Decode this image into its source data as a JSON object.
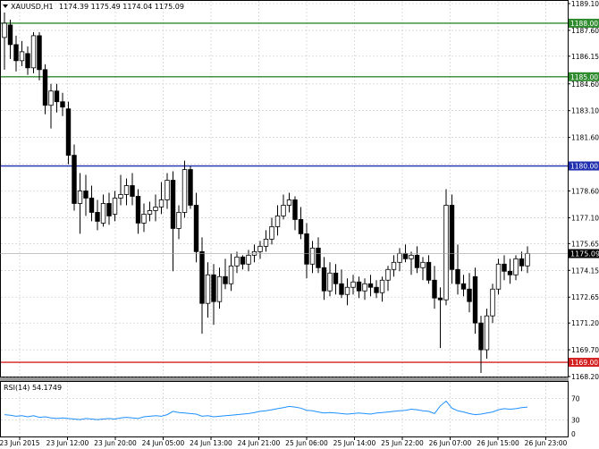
{
  "main_chart": {
    "symbol_label": "XAUUSD,H1",
    "ohlc_label": "1174.39 1175.49 1174.04 1175.09",
    "current_price_label": "1175.09",
    "current_price": 1175.09
  },
  "levels": [
    {
      "price": 1188.0,
      "label": "1188.00",
      "color": "#2e8b2e"
    },
    {
      "price": 1185.0,
      "label": "1185.00",
      "color": "#2e8b2e"
    },
    {
      "price": 1180.0,
      "label": "1180.00",
      "color": "#1f2fb0"
    },
    {
      "price": 1169.0,
      "label": "1169.00",
      "color": "#d42020"
    }
  ],
  "rsi": {
    "label": "RSI(14) 54.1749",
    "period": 14,
    "value": 54.1749,
    "axis_labels": [
      "70",
      "30",
      "0"
    ],
    "line_color": "#1e90ff"
  },
  "colors": {
    "grid": "#c8c8c8",
    "candle": "#000000",
    "axis": "#000000",
    "rsi_line": "#1e90ff"
  },
  "chart_data": [
    {
      "type": "candlestick",
      "title": "XAUUSD,H1",
      "ylim": [
        1168.2,
        1189.1
      ],
      "y_ticks": [
        "1189.10",
        "1187.60",
        "1186.15",
        "1184.60",
        "1183.10",
        "1181.60",
        "1180.10",
        "1178.60",
        "1177.10",
        "1175.65",
        "1174.15",
        "1172.65",
        "1171.20",
        "1169.70",
        "1168.20"
      ],
      "x_tick_labels": [
        "23 Jun 2015",
        "23 Jun 12:00",
        "23 Jun 20:00",
        "24 Jun 05:00",
        "24 Jun 13:00",
        "24 Jun 21:00",
        "25 Jun 06:00",
        "25 Jun 14:00",
        "25 Jun 22:00",
        "26 Jun 07:00",
        "26 Jun 15:00",
        "26 Jun 23:00"
      ],
      "candles": [
        {
          "o": 1187.2,
          "h": 1188.6,
          "l": 1185.4,
          "c": 1188.0
        },
        {
          "o": 1187.9,
          "h": 1188.2,
          "l": 1186.0,
          "c": 1186.8
        },
        {
          "o": 1186.8,
          "h": 1187.3,
          "l": 1185.3,
          "c": 1185.9
        },
        {
          "o": 1185.9,
          "h": 1187.0,
          "l": 1185.6,
          "c": 1186.4
        },
        {
          "o": 1186.3,
          "h": 1186.7,
          "l": 1185.1,
          "c": 1185.5
        },
        {
          "o": 1185.5,
          "h": 1187.5,
          "l": 1185.2,
          "c": 1187.3
        },
        {
          "o": 1187.3,
          "h": 1187.5,
          "l": 1184.8,
          "c": 1185.4
        },
        {
          "o": 1185.4,
          "h": 1185.7,
          "l": 1182.9,
          "c": 1183.4
        },
        {
          "o": 1183.4,
          "h": 1184.6,
          "l": 1182.1,
          "c": 1184.2
        },
        {
          "o": 1184.2,
          "h": 1184.6,
          "l": 1183.0,
          "c": 1183.6
        },
        {
          "o": 1183.6,
          "h": 1184.1,
          "l": 1182.8,
          "c": 1183.3
        },
        {
          "o": 1183.2,
          "h": 1183.6,
          "l": 1180.1,
          "c": 1180.6
        },
        {
          "o": 1180.6,
          "h": 1181.2,
          "l": 1177.5,
          "c": 1177.9
        },
        {
          "o": 1177.9,
          "h": 1179.6,
          "l": 1176.2,
          "c": 1178.6
        },
        {
          "o": 1178.6,
          "h": 1179.5,
          "l": 1177.2,
          "c": 1178.2
        },
        {
          "o": 1178.2,
          "h": 1178.9,
          "l": 1176.9,
          "c": 1177.4
        },
        {
          "o": 1177.4,
          "h": 1178.1,
          "l": 1176.4,
          "c": 1176.9
        },
        {
          "o": 1176.8,
          "h": 1178.4,
          "l": 1176.6,
          "c": 1177.9
        },
        {
          "o": 1177.9,
          "h": 1178.5,
          "l": 1176.7,
          "c": 1177.2
        },
        {
          "o": 1177.3,
          "h": 1178.6,
          "l": 1176.9,
          "c": 1178.2
        },
        {
          "o": 1178.2,
          "h": 1179.5,
          "l": 1177.8,
          "c": 1178.4
        },
        {
          "o": 1178.4,
          "h": 1179.3,
          "l": 1177.8,
          "c": 1178.9
        },
        {
          "o": 1178.9,
          "h": 1179.6,
          "l": 1177.8,
          "c": 1178.3
        },
        {
          "o": 1178.3,
          "h": 1178.7,
          "l": 1176.2,
          "c": 1176.8
        },
        {
          "o": 1176.8,
          "h": 1177.9,
          "l": 1176.3,
          "c": 1177.3
        },
        {
          "o": 1177.3,
          "h": 1178.0,
          "l": 1176.9,
          "c": 1177.5
        },
        {
          "o": 1177.5,
          "h": 1178.4,
          "l": 1176.9,
          "c": 1177.7
        },
        {
          "o": 1177.7,
          "h": 1179.1,
          "l": 1177.3,
          "c": 1178.1
        },
        {
          "o": 1178.1,
          "h": 1179.6,
          "l": 1177.6,
          "c": 1179.2
        },
        {
          "o": 1179.2,
          "h": 1179.7,
          "l": 1174.1,
          "c": 1176.5
        },
        {
          "o": 1176.5,
          "h": 1177.8,
          "l": 1175.9,
          "c": 1177.4
        },
        {
          "o": 1177.4,
          "h": 1180.3,
          "l": 1177.1,
          "c": 1179.8
        },
        {
          "o": 1179.8,
          "h": 1180.0,
          "l": 1177.6,
          "c": 1177.8
        },
        {
          "o": 1177.8,
          "h": 1178.5,
          "l": 1174.6,
          "c": 1175.2
        },
        {
          "o": 1175.2,
          "h": 1176.0,
          "l": 1170.6,
          "c": 1172.3
        },
        {
          "o": 1172.3,
          "h": 1174.6,
          "l": 1171.5,
          "c": 1173.9
        },
        {
          "o": 1173.9,
          "h": 1174.5,
          "l": 1171.1,
          "c": 1172.4
        },
        {
          "o": 1172.4,
          "h": 1174.3,
          "l": 1172.0,
          "c": 1173.8
        },
        {
          "o": 1173.8,
          "h": 1174.8,
          "l": 1173.1,
          "c": 1173.4
        },
        {
          "o": 1173.4,
          "h": 1175.1,
          "l": 1173.0,
          "c": 1174.4
        },
        {
          "o": 1174.4,
          "h": 1175.2,
          "l": 1174.0,
          "c": 1174.9
        },
        {
          "o": 1174.9,
          "h": 1175.0,
          "l": 1174.2,
          "c": 1174.5
        },
        {
          "o": 1174.5,
          "h": 1175.3,
          "l": 1174.1,
          "c": 1175.0
        },
        {
          "o": 1175.0,
          "h": 1175.6,
          "l": 1174.6,
          "c": 1175.2
        },
        {
          "o": 1175.2,
          "h": 1175.8,
          "l": 1174.8,
          "c": 1175.5
        },
        {
          "o": 1175.5,
          "h": 1176.4,
          "l": 1175.2,
          "c": 1175.9
        },
        {
          "o": 1175.9,
          "h": 1177.1,
          "l": 1175.6,
          "c": 1176.6
        },
        {
          "o": 1176.6,
          "h": 1177.8,
          "l": 1176.1,
          "c": 1177.2
        },
        {
          "o": 1177.2,
          "h": 1178.4,
          "l": 1177.0,
          "c": 1177.8
        },
        {
          "o": 1177.8,
          "h": 1178.5,
          "l": 1177.4,
          "c": 1178.1
        },
        {
          "o": 1178.1,
          "h": 1178.3,
          "l": 1176.4,
          "c": 1177.0
        },
        {
          "o": 1177.0,
          "h": 1177.7,
          "l": 1175.9,
          "c": 1176.2
        },
        {
          "o": 1176.2,
          "h": 1176.8,
          "l": 1173.7,
          "c": 1174.5
        },
        {
          "o": 1174.5,
          "h": 1175.8,
          "l": 1174.0,
          "c": 1175.4
        },
        {
          "o": 1175.4,
          "h": 1176.0,
          "l": 1174.0,
          "c": 1174.3
        },
        {
          "o": 1174.3,
          "h": 1174.9,
          "l": 1172.5,
          "c": 1173.0
        },
        {
          "o": 1173.0,
          "h": 1174.6,
          "l": 1172.7,
          "c": 1174.0
        },
        {
          "o": 1174.0,
          "h": 1174.5,
          "l": 1172.8,
          "c": 1173.4
        },
        {
          "o": 1173.4,
          "h": 1174.2,
          "l": 1172.6,
          "c": 1172.8
        },
        {
          "o": 1172.8,
          "h": 1173.7,
          "l": 1172.2,
          "c": 1173.2
        },
        {
          "o": 1173.2,
          "h": 1173.9,
          "l": 1172.8,
          "c": 1173.5
        },
        {
          "o": 1173.5,
          "h": 1173.8,
          "l": 1172.6,
          "c": 1173.0
        },
        {
          "o": 1173.0,
          "h": 1173.7,
          "l": 1172.5,
          "c": 1173.4
        },
        {
          "o": 1173.4,
          "h": 1173.9,
          "l": 1172.7,
          "c": 1173.2
        },
        {
          "o": 1173.2,
          "h": 1173.6,
          "l": 1172.6,
          "c": 1172.9
        },
        {
          "o": 1172.9,
          "h": 1173.8,
          "l": 1172.4,
          "c": 1173.6
        },
        {
          "o": 1173.6,
          "h": 1174.4,
          "l": 1173.0,
          "c": 1174.2
        },
        {
          "o": 1174.2,
          "h": 1175.0,
          "l": 1173.8,
          "c": 1174.6
        },
        {
          "o": 1174.6,
          "h": 1175.4,
          "l": 1174.1,
          "c": 1175.1
        },
        {
          "o": 1175.1,
          "h": 1175.6,
          "l": 1174.6,
          "c": 1174.8
        },
        {
          "o": 1174.8,
          "h": 1175.2,
          "l": 1173.9,
          "c": 1175.0
        },
        {
          "o": 1175.0,
          "h": 1175.5,
          "l": 1174.0,
          "c": 1174.3
        },
        {
          "o": 1174.3,
          "h": 1174.9,
          "l": 1173.6,
          "c": 1174.6
        },
        {
          "o": 1174.6,
          "h": 1175.0,
          "l": 1173.4,
          "c": 1173.6
        },
        {
          "o": 1173.6,
          "h": 1174.4,
          "l": 1172.0,
          "c": 1172.6
        },
        {
          "o": 1172.6,
          "h": 1173.2,
          "l": 1169.8,
          "c": 1172.5
        },
        {
          "o": 1172.5,
          "h": 1178.7,
          "l": 1172.2,
          "c": 1177.8
        },
        {
          "o": 1177.8,
          "h": 1178.4,
          "l": 1173.4,
          "c": 1174.2
        },
        {
          "o": 1174.2,
          "h": 1175.6,
          "l": 1172.8,
          "c": 1173.4
        },
        {
          "o": 1173.4,
          "h": 1173.9,
          "l": 1172.7,
          "c": 1173.1
        },
        {
          "o": 1173.1,
          "h": 1174.0,
          "l": 1171.8,
          "c": 1172.4
        },
        {
          "o": 1173.8,
          "h": 1174.3,
          "l": 1170.6,
          "c": 1171.2
        },
        {
          "o": 1171.2,
          "h": 1171.6,
          "l": 1168.4,
          "c": 1169.7
        },
        {
          "o": 1169.7,
          "h": 1172.0,
          "l": 1169.2,
          "c": 1171.6
        },
        {
          "o": 1171.6,
          "h": 1173.4,
          "l": 1171.2,
          "c": 1173.1
        },
        {
          "o": 1173.1,
          "h": 1174.8,
          "l": 1172.8,
          "c": 1174.5
        },
        {
          "o": 1174.5,
          "h": 1175.0,
          "l": 1173.6,
          "c": 1174.1
        },
        {
          "o": 1174.1,
          "h": 1174.8,
          "l": 1173.4,
          "c": 1173.9
        },
        {
          "o": 1173.9,
          "h": 1175.0,
          "l": 1173.6,
          "c": 1174.8
        },
        {
          "o": 1174.8,
          "h": 1175.2,
          "l": 1174.1,
          "c": 1174.4
        },
        {
          "o": 1174.4,
          "h": 1175.5,
          "l": 1174.0,
          "c": 1175.1
        }
      ]
    },
    {
      "type": "line",
      "title": "RSI(14)",
      "ylim": [
        0,
        100
      ],
      "y_ticks": [
        "70",
        "30",
        "0"
      ],
      "values": [
        40,
        39,
        37,
        38,
        36,
        38,
        35,
        36,
        34,
        33,
        34,
        33,
        32,
        31,
        33,
        32,
        31,
        32,
        33,
        32,
        34,
        35,
        34,
        33,
        36,
        37,
        38,
        37,
        40,
        46,
        44,
        43,
        42,
        41,
        37,
        38,
        36,
        37,
        38,
        39,
        40,
        41,
        42,
        44,
        46,
        47,
        49,
        51,
        53,
        55,
        54,
        52,
        48,
        47,
        45,
        43,
        44,
        43,
        42,
        41,
        42,
        43,
        42,
        41,
        43,
        44,
        45,
        46,
        47,
        48,
        50,
        49,
        47,
        46,
        42,
        56,
        65,
        52,
        47,
        45,
        42,
        40,
        41,
        43,
        45,
        49,
        51,
        50,
        51,
        53,
        54
      ]
    }
  ]
}
